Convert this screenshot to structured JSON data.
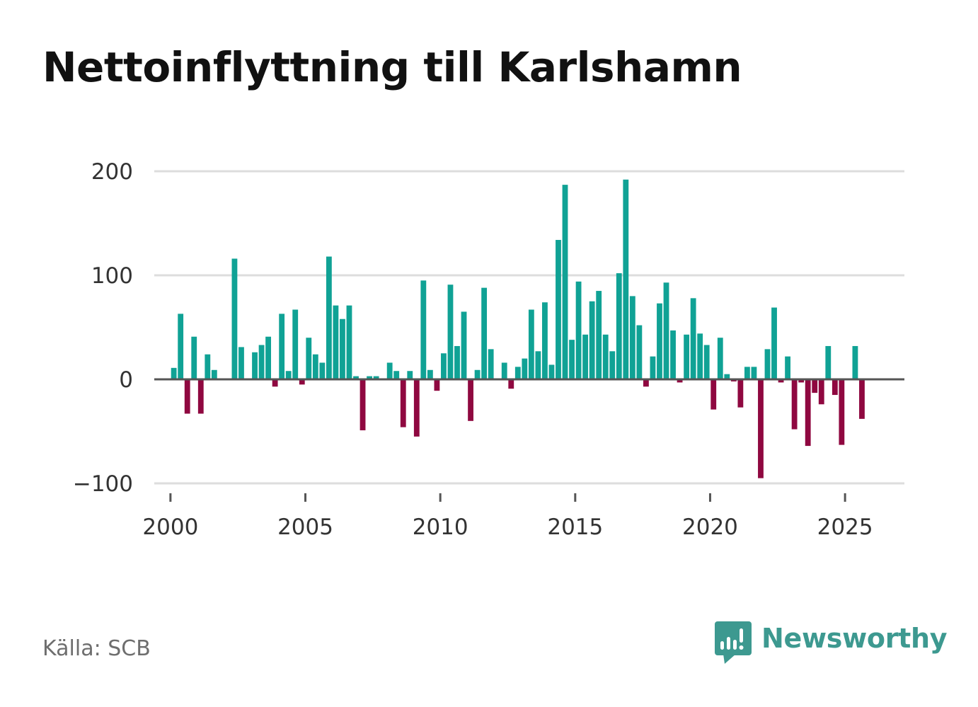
{
  "title": "Nettoinflyttning till Karlshamn",
  "source": "Källa: SCB",
  "brand": {
    "name": "Newsworthy",
    "logo_icon": "newsworthy-logo-icon",
    "color": "#3d9990"
  },
  "colors": {
    "positive": "#10a295",
    "negative": "#8f0840",
    "grid": "#dddddd",
    "zero_line": "#555555",
    "tick_text": "#333333"
  },
  "chart_data": {
    "type": "bar",
    "title": "Nettoinflyttning till Karlshamn",
    "xlabel": "",
    "ylabel": "",
    "ylim": [
      -100,
      200
    ],
    "xlim": [
      1999.4,
      2027.2
    ],
    "grid": true,
    "legend": "none",
    "y_ticks": [
      200,
      100,
      0,
      -100
    ],
    "y_tick_labels": [
      "200",
      "100",
      "0",
      "−100"
    ],
    "x_ticks": [
      2000,
      2005,
      2010,
      2015,
      2020,
      2025
    ],
    "x_tick_labels": [
      "2000",
      "2005",
      "2010",
      "2015",
      "2020",
      "2025"
    ],
    "bar_period": "quarter",
    "x_start": 2000.125,
    "x_step": 0.25,
    "values": [
      11,
      63,
      -33,
      41,
      -33,
      24,
      9,
      0,
      0,
      116,
      31,
      0,
      26,
      33,
      41,
      -7,
      63,
      8,
      67,
      -5,
      40,
      24,
      16,
      118,
      71,
      58,
      71,
      3,
      -49,
      3,
      3,
      1,
      16,
      8,
      -46,
      8,
      -55,
      95,
      9,
      -11,
      25,
      91,
      32,
      65,
      -40,
      9,
      88,
      29,
      1,
      16,
      -9,
      12,
      20,
      67,
      27,
      74,
      14,
      134,
      187,
      38,
      94,
      43,
      75,
      85,
      43,
      27,
      102,
      192,
      80,
      52,
      -7,
      22,
      73,
      93,
      47,
      -3,
      43,
      78,
      44,
      33,
      -29,
      40,
      5,
      -2,
      -27,
      12,
      12,
      -95,
      29,
      69,
      -3,
      22,
      -48,
      -3,
      -64,
      -13,
      -24,
      32,
      -15,
      -63,
      0,
      32,
      -38
    ]
  }
}
